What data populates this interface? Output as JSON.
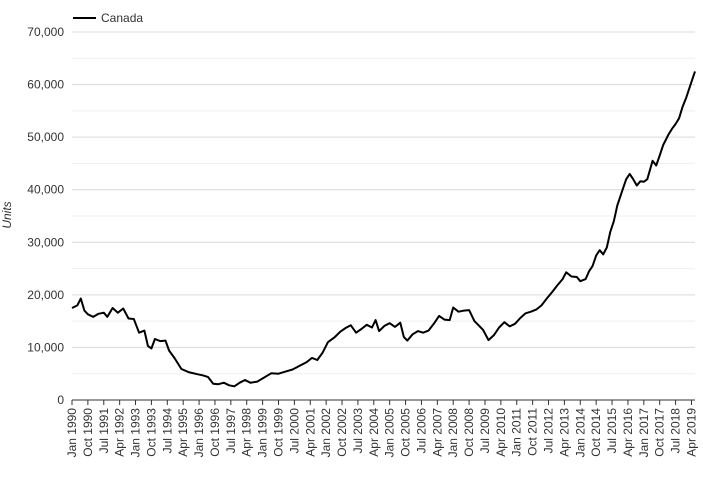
{
  "chart_data": {
    "type": "line",
    "title": "",
    "xlabel": "",
    "ylabel": "Units",
    "ylim": [
      0,
      70000
    ],
    "yticks": [
      0,
      10000,
      20000,
      30000,
      40000,
      50000,
      60000,
      70000
    ],
    "ytick_labels": [
      "0",
      "10,000",
      "20,000",
      "30,000",
      "40,000",
      "50,000",
      "60,000",
      "70,000"
    ],
    "x_start": "Jan 1990",
    "x_end": "Jun 2019",
    "grid": true,
    "legend": "top-left",
    "xticks": [
      "Jan 1990",
      "Oct 1990",
      "Jul 1991",
      "Apr 1992",
      "Jan 1993",
      "Oct 1993",
      "Jul 1994",
      "Apr 1995",
      "Jan 1996",
      "Oct 1996",
      "Jul 1997",
      "Apr 1998",
      "Jan 1999",
      "Oct 1999",
      "Jul 2000",
      "Apr 2001",
      "Jan 2002",
      "Oct 2002",
      "Jul 2003",
      "Apr 2004",
      "Jan 2005",
      "Oct 2005",
      "Jul 2006",
      "Apr 2007",
      "Jan 2008",
      "Oct 2008",
      "Jul 2009",
      "Apr 2010",
      "Jan 2011",
      "Oct 2011",
      "Jul 2012",
      "Apr 2013",
      "Jan 2014",
      "Oct 2014",
      "Jul 2015",
      "Apr 2016",
      "Jan 2017",
      "Oct 2017",
      "Jul 2018",
      "Apr 2019"
    ],
    "series": [
      {
        "name": "Canada",
        "color": "#000000",
        "points": [
          [
            "Jan 1990",
            17500
          ],
          [
            "Apr 1990",
            18000
          ],
          [
            "Jun 1990",
            19300
          ],
          [
            "Aug 1990",
            17000
          ],
          [
            "Oct 1990",
            16300
          ],
          [
            "Jan 1991",
            15800
          ],
          [
            "Apr 1991",
            16400
          ],
          [
            "Jul 1991",
            16600
          ],
          [
            "Sep 1991",
            15800
          ],
          [
            "Dec 1991",
            17500
          ],
          [
            "Mar 1992",
            16600
          ],
          [
            "Jun 1992",
            17400
          ],
          [
            "Sep 1992",
            15500
          ],
          [
            "Dec 1992",
            15400
          ],
          [
            "Mar 1993",
            12800
          ],
          [
            "Jun 1993",
            13200
          ],
          [
            "Aug 1993",
            10300
          ],
          [
            "Oct 1993",
            9800
          ],
          [
            "Dec 1993",
            11600
          ],
          [
            "Mar 1994",
            11200
          ],
          [
            "Jun 1994",
            11300
          ],
          [
            "Aug 1994",
            9400
          ],
          [
            "Nov 1994",
            8000
          ],
          [
            "Mar 1995",
            5900
          ],
          [
            "Jul 1995",
            5300
          ],
          [
            "Dec 1995",
            4900
          ],
          [
            "Mar 1996",
            4700
          ],
          [
            "Jun 1996",
            4400
          ],
          [
            "Sep 1996",
            3100
          ],
          [
            "Dec 1996",
            3000
          ],
          [
            "Mar 1997",
            3300
          ],
          [
            "Jun 1997",
            2800
          ],
          [
            "Sep 1997",
            2600
          ],
          [
            "Dec 1997",
            3300
          ],
          [
            "Mar 1998",
            3800
          ],
          [
            "Jun 1998",
            3300
          ],
          [
            "Oct 1998",
            3500
          ],
          [
            "Feb 1999",
            4300
          ],
          [
            "Jun 1999",
            5100
          ],
          [
            "Oct 1999",
            5000
          ],
          [
            "Feb 2000",
            5400
          ],
          [
            "Jun 2000",
            5800
          ],
          [
            "Oct 2000",
            6500
          ],
          [
            "Feb 2001",
            7200
          ],
          [
            "May 2001",
            8000
          ],
          [
            "Aug 2001",
            7600
          ],
          [
            "Nov 2001",
            9000
          ],
          [
            "Feb 2002",
            11000
          ],
          [
            "Jun 2002",
            12000
          ],
          [
            "Sep 2002",
            13000
          ],
          [
            "Dec 2002",
            13700
          ],
          [
            "Mar 2003",
            14200
          ],
          [
            "Jun 2003",
            12800
          ],
          [
            "Sep 2003",
            13500
          ],
          [
            "Dec 2003",
            14300
          ],
          [
            "Mar 2004",
            13800
          ],
          [
            "May 2004",
            15200
          ],
          [
            "Jul 2004",
            13100
          ],
          [
            "Oct 2004",
            14100
          ],
          [
            "Jan 2005",
            14600
          ],
          [
            "Apr 2005",
            13900
          ],
          [
            "Jul 2005",
            14700
          ],
          [
            "Sep 2005",
            12000
          ],
          [
            "Nov 2005",
            11300
          ],
          [
            "Feb 2006",
            12500
          ],
          [
            "May 2006",
            13100
          ],
          [
            "Aug 2006",
            12800
          ],
          [
            "Nov 2006",
            13200
          ],
          [
            "Feb 2007",
            14500
          ],
          [
            "May 2007",
            16000
          ],
          [
            "Aug 2007",
            15300
          ],
          [
            "Nov 2007",
            15200
          ],
          [
            "Jan 2008",
            17600
          ],
          [
            "Apr 2008",
            16800
          ],
          [
            "Jul 2008",
            17000
          ],
          [
            "Oct 2008",
            17100
          ],
          [
            "Jan 2009",
            15000
          ],
          [
            "Apr 2009",
            14000
          ],
          [
            "Jun 2009",
            13300
          ],
          [
            "Sep 2009",
            11400
          ],
          [
            "Dec 2009",
            12300
          ],
          [
            "Mar 2010",
            13800
          ],
          [
            "Jun 2010",
            14800
          ],
          [
            "Sep 2010",
            14000
          ],
          [
            "Dec 2010",
            14500
          ],
          [
            "Mar 2011",
            15600
          ],
          [
            "Jun 2011",
            16500
          ],
          [
            "Sep 2011",
            16800
          ],
          [
            "Dec 2011",
            17200
          ],
          [
            "Mar 2012",
            18000
          ],
          [
            "Jun 2012",
            19300
          ],
          [
            "Sep 2012",
            20500
          ],
          [
            "Dec 2012",
            21800
          ],
          [
            "Mar 2013",
            23000
          ],
          [
            "May 2013",
            24300
          ],
          [
            "Aug 2013",
            23500
          ],
          [
            "Nov 2013",
            23400
          ],
          [
            "Jan 2014",
            22600
          ],
          [
            "Apr 2014",
            23000
          ],
          [
            "Jun 2014",
            24500
          ],
          [
            "Aug 2014",
            25500
          ],
          [
            "Oct 2014",
            27500
          ],
          [
            "Dec 2014",
            28500
          ],
          [
            "Feb 2015",
            27700
          ],
          [
            "Apr 2015",
            29000
          ],
          [
            "Jun 2015",
            32000
          ],
          [
            "Aug 2015",
            34000
          ],
          [
            "Oct 2015",
            37000
          ],
          [
            "Jan 2016",
            40000
          ],
          [
            "Mar 2016",
            42000
          ],
          [
            "May 2016",
            43000
          ],
          [
            "Jul 2016",
            42000
          ],
          [
            "Sep 2016",
            40800
          ],
          [
            "Nov 2016",
            41600
          ],
          [
            "Jan 2017",
            41500
          ],
          [
            "Mar 2017",
            42000
          ],
          [
            "Jun 2017",
            45500
          ],
          [
            "Aug 2017",
            44600
          ],
          [
            "Oct 2017",
            46500
          ],
          [
            "Dec 2017",
            48500
          ],
          [
            "Mar 2018",
            50500
          ],
          [
            "May 2018",
            51600
          ],
          [
            "Jul 2018",
            52500
          ],
          [
            "Sep 2018",
            53600
          ],
          [
            "Nov 2018",
            55800
          ],
          [
            "Jan 2019",
            57500
          ],
          [
            "Mar 2019",
            59500
          ],
          [
            "May 2019",
            61500
          ],
          [
            "Jun 2019",
            62500
          ]
        ]
      }
    ]
  }
}
